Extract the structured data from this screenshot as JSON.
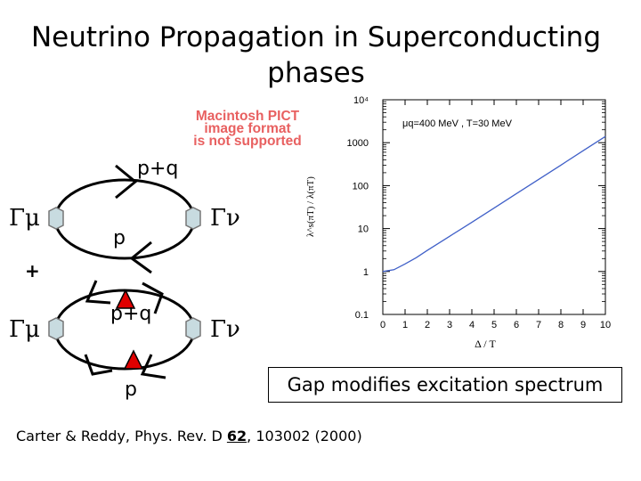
{
  "title": {
    "line1": "Neutrino Propagation in Superconducting",
    "line2": "phases"
  },
  "pict_placeholder": {
    "line1": "Macintosh PICT",
    "line2": "image format",
    "line3": "is not supported",
    "color": "#e86060"
  },
  "diagram": {
    "top_loop": {
      "label_upper": "p+q",
      "label_lower": "p",
      "vertex_left": "Γμ",
      "vertex_right": "Γν"
    },
    "plus": "+",
    "bottom_loop": {
      "label_upper": "p+q",
      "label_lower": "p",
      "vertex_left": "Γμ",
      "vertex_right": "Γν"
    },
    "vertex_color": "#c8dbe0",
    "gap_marker_color": "#e00000"
  },
  "caption": "Gap modifies excitation spectrum",
  "citation": {
    "prefix": "Carter & Reddy, Phys. Rev. D ",
    "volume": "62",
    "suffix": ", 103002 (2000)"
  },
  "chart_data": {
    "type": "line",
    "annotation": "μq=400 MeV , T=30 MeV",
    "ylabel": "λ^s(πT) / λ(πT)",
    "xlabel": "Δ / T",
    "yscale": "log",
    "ylim": [
      0.1,
      10000
    ],
    "xlim": [
      0,
      10
    ],
    "x_ticks": [
      "0",
      "1",
      "2",
      "3",
      "4",
      "5",
      "6",
      "7",
      "8",
      "9",
      "10"
    ],
    "y_ticks": [
      "0.1",
      "1",
      "10",
      "100",
      "1000",
      "10⁴"
    ],
    "grid": false,
    "series": [
      {
        "x": [
          0,
          0.5,
          1,
          1.5,
          2,
          3,
          4,
          5,
          6,
          7,
          8,
          9,
          10
        ],
        "y": [
          1,
          1.1,
          1.5,
          2.1,
          3.1,
          6.6,
          14,
          30,
          65,
          140,
          300,
          650,
          1400
        ]
      }
    ]
  }
}
